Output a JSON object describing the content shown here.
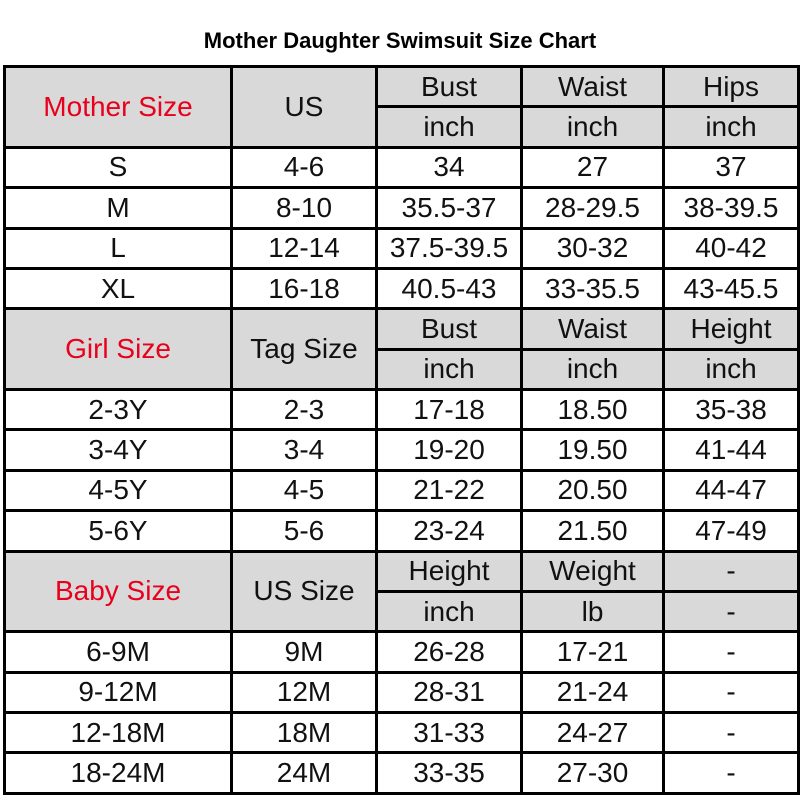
{
  "title": "Mother Daughter Swimsuit Size Chart",
  "sections": [
    {
      "size_label": "Mother Size",
      "tag_label": "US",
      "measures": [
        {
          "name": "Bust",
          "unit": "inch"
        },
        {
          "name": "Waist",
          "unit": "inch"
        },
        {
          "name": "Hips",
          "unit": "inch"
        }
      ],
      "rows": [
        [
          "S",
          "4-6",
          "34",
          "27",
          "37"
        ],
        [
          "M",
          "8-10",
          "35.5-37",
          "28-29.5",
          "38-39.5"
        ],
        [
          "L",
          "12-14",
          "37.5-39.5",
          "30-32",
          "40-42"
        ],
        [
          "XL",
          "16-18",
          "40.5-43",
          "33-35.5",
          "43-45.5"
        ]
      ]
    },
    {
      "size_label": "Girl Size",
      "tag_label": "Tag Size",
      "measures": [
        {
          "name": "Bust",
          "unit": "inch"
        },
        {
          "name": "Waist",
          "unit": "inch"
        },
        {
          "name": "Height",
          "unit": "inch"
        }
      ],
      "rows": [
        [
          "2-3Y",
          "2-3",
          "17-18",
          "18.50",
          "35-38"
        ],
        [
          "3-4Y",
          "3-4",
          "19-20",
          "19.50",
          "41-44"
        ],
        [
          "4-5Y",
          "4-5",
          "21-22",
          "20.50",
          "44-47"
        ],
        [
          "5-6Y",
          "5-6",
          "23-24",
          "21.50",
          "47-49"
        ]
      ]
    },
    {
      "size_label": "Baby Size",
      "tag_label": "US Size",
      "measures": [
        {
          "name": "Height",
          "unit": "inch"
        },
        {
          "name": "Weight",
          "unit": "lb"
        },
        {
          "name": "-",
          "unit": "-"
        }
      ],
      "rows": [
        [
          "6-9M",
          "9M",
          "26-28",
          "17-21",
          "-"
        ],
        [
          "9-12M",
          "12M",
          "28-31",
          "21-24",
          "-"
        ],
        [
          "12-18M",
          "18M",
          "31-33",
          "24-27",
          "-"
        ],
        [
          "18-24M",
          "24M",
          "33-35",
          "27-30",
          "-"
        ]
      ]
    }
  ]
}
